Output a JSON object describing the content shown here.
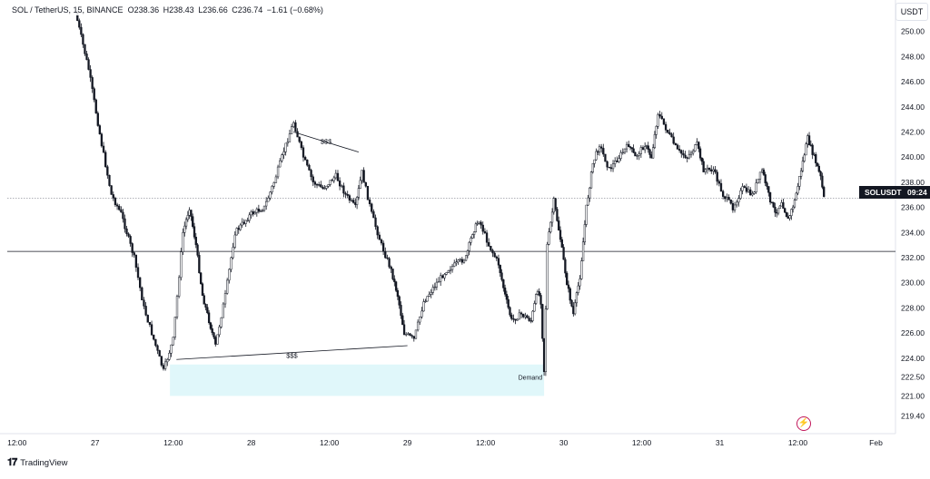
{
  "legend": {
    "symbol": "SOL / TetherUS, 15, BINANCE",
    "open_label": "O",
    "open": "238.36",
    "high_label": "H",
    "high": "238.43",
    "low_label": "L",
    "low": "236.66",
    "close_label": "C",
    "close": "236.74",
    "change": "−1.61 (−0.68%)"
  },
  "currency": "USDT",
  "price_tag": {
    "symbol": "SOLUSDT",
    "countdown": "09:24"
  },
  "brand": "TradingView",
  "colors": {
    "candle": "#131722",
    "demand_zone": "#e0f7fa",
    "grid": "#e6e8ec",
    "tag_bg": "#131722",
    "flash": "#c2185b"
  },
  "icons": [
    "tradingview-logo-icon",
    "flash-icon"
  ],
  "chart_data": {
    "type": "candlestick",
    "y_axis": {
      "range": [
        218.0,
        252.5
      ],
      "ticks": [
        250.0,
        248.0,
        246.0,
        244.0,
        242.0,
        240.0,
        238.0,
        236.0,
        234.0,
        232.0,
        230.0,
        228.0,
        226.0,
        224.0,
        222.5,
        221.0,
        219.4
      ],
      "tick_labels": [
        "250.00",
        "248.00",
        "246.00",
        "244.00",
        "242.00",
        "240.00",
        "238.00",
        "236.00",
        "234.00",
        "232.00",
        "230.00",
        "228.00",
        "226.00",
        "224.00",
        "222.50",
        "221.00",
        "219.40"
      ]
    },
    "x_axis": {
      "range": [
        "2025-01-26 10:30",
        "2025-02-01 03:00"
      ],
      "tick_labels": [
        {
          "t": "2025-01-26 12:00",
          "label": "12:00"
        },
        {
          "t": "2025-01-27 00:00",
          "label": "27"
        },
        {
          "t": "2025-01-27 12:00",
          "label": "12:00"
        },
        {
          "t": "2025-01-28 00:00",
          "label": "28"
        },
        {
          "t": "2025-01-28 12:00",
          "label": "12:00"
        },
        {
          "t": "2025-01-29 00:00",
          "label": "29"
        },
        {
          "t": "2025-01-29 12:00",
          "label": "12:00"
        },
        {
          "t": "2025-01-30 00:00",
          "label": "30"
        },
        {
          "t": "2025-01-30 12:00",
          "label": "12:00"
        },
        {
          "t": "2025-01-31 00:00",
          "label": "31"
        },
        {
          "t": "2025-01-31 12:00",
          "label": "12:00"
        },
        {
          "t": "2025-02-01 00:00",
          "label": "Feb"
        }
      ]
    },
    "price_path": [
      {
        "t": "2025-01-26 21:00",
        "p": 251.5
      },
      {
        "t": "2025-01-26 23:00",
        "p": 247.0
      },
      {
        "t": "2025-01-27 01:00",
        "p": 241.0
      },
      {
        "t": "2025-01-27 02:30",
        "p": 237.0
      },
      {
        "t": "2025-01-27 04:00",
        "p": 235.5
      },
      {
        "t": "2025-01-27 06:00",
        "p": 232.0
      },
      {
        "t": "2025-01-27 07:30",
        "p": 228.0
      },
      {
        "t": "2025-01-27 09:00",
        "p": 225.5
      },
      {
        "t": "2025-01-27 10:30",
        "p": 223.0
      },
      {
        "t": "2025-01-27 12:00",
        "p": 225.5
      },
      {
        "t": "2025-01-27 13:30",
        "p": 234.0
      },
      {
        "t": "2025-01-27 14:30",
        "p": 236.0
      },
      {
        "t": "2025-01-27 15:30",
        "p": 233.0
      },
      {
        "t": "2025-01-27 16:30",
        "p": 229.0
      },
      {
        "t": "2025-01-27 17:30",
        "p": 227.0
      },
      {
        "t": "2025-01-27 18:30",
        "p": 225.0
      },
      {
        "t": "2025-01-27 20:00",
        "p": 229.0
      },
      {
        "t": "2025-01-27 21:30",
        "p": 234.0
      },
      {
        "t": "2025-01-28 00:00",
        "p": 235.5
      },
      {
        "t": "2025-01-28 02:00",
        "p": 236.0
      },
      {
        "t": "2025-01-28 03:30",
        "p": 238.0
      },
      {
        "t": "2025-01-28 05:00",
        "p": 240.5
      },
      {
        "t": "2025-01-28 06:30",
        "p": 242.8
      },
      {
        "t": "2025-01-28 08:00",
        "p": 240.0
      },
      {
        "t": "2025-01-28 09:30",
        "p": 238.0
      },
      {
        "t": "2025-01-28 11:00",
        "p": 237.5
      },
      {
        "t": "2025-01-28 13:00",
        "p": 238.5
      },
      {
        "t": "2025-01-28 14:30",
        "p": 237.0
      },
      {
        "t": "2025-01-28 16:00",
        "p": 236.0
      },
      {
        "t": "2025-01-28 17:00",
        "p": 238.8
      },
      {
        "t": "2025-01-28 18:30",
        "p": 235.5
      },
      {
        "t": "2025-01-28 20:00",
        "p": 233.0
      },
      {
        "t": "2025-01-28 21:30",
        "p": 231.0
      },
      {
        "t": "2025-01-28 22:30",
        "p": 229.0
      },
      {
        "t": "2025-01-28 23:30",
        "p": 226.0
      },
      {
        "t": "2025-01-29 01:00",
        "p": 225.5
      },
      {
        "t": "2025-01-29 02:30",
        "p": 228.5
      },
      {
        "t": "2025-01-29 04:30",
        "p": 230.0
      },
      {
        "t": "2025-01-29 06:00",
        "p": 231.0
      },
      {
        "t": "2025-01-29 07:30",
        "p": 231.5
      },
      {
        "t": "2025-01-29 09:00",
        "p": 232.0
      },
      {
        "t": "2025-01-29 10:00",
        "p": 234.0
      },
      {
        "t": "2025-01-29 11:00",
        "p": 235.0
      },
      {
        "t": "2025-01-29 12:30",
        "p": 233.0
      },
      {
        "t": "2025-01-29 14:00",
        "p": 231.5
      },
      {
        "t": "2025-01-29 15:00",
        "p": 229.0
      },
      {
        "t": "2025-01-29 16:00",
        "p": 227.0
      },
      {
        "t": "2025-01-29 17:30",
        "p": 227.5
      },
      {
        "t": "2025-01-29 19:00",
        "p": 227.0
      },
      {
        "t": "2025-01-29 20:00",
        "p": 229.5
      },
      {
        "t": "2025-01-29 20:30",
        "p": 228.5
      },
      {
        "t": "2025-01-29 21:00",
        "p": 223.0
      },
      {
        "t": "2025-01-29 21:30",
        "p": 233.0
      },
      {
        "t": "2025-01-29 22:30",
        "p": 236.5
      },
      {
        "t": "2025-01-29 23:30",
        "p": 233.5
      },
      {
        "t": "2025-01-30 00:30",
        "p": 230.0
      },
      {
        "t": "2025-01-30 01:30",
        "p": 227.5
      },
      {
        "t": "2025-01-30 02:30",
        "p": 230.5
      },
      {
        "t": "2025-01-30 03:30",
        "p": 236.0
      },
      {
        "t": "2025-01-30 04:30",
        "p": 239.5
      },
      {
        "t": "2025-01-30 05:30",
        "p": 241.0
      },
      {
        "t": "2025-01-30 07:00",
        "p": 239.0
      },
      {
        "t": "2025-01-30 08:30",
        "p": 240.0
      },
      {
        "t": "2025-01-30 10:00",
        "p": 241.0
      },
      {
        "t": "2025-01-30 11:00",
        "p": 240.0
      },
      {
        "t": "2025-01-30 12:30",
        "p": 241.0
      },
      {
        "t": "2025-01-30 13:30",
        "p": 240.0
      },
      {
        "t": "2025-01-30 14:30",
        "p": 243.5
      },
      {
        "t": "2025-01-30 16:00",
        "p": 242.0
      },
      {
        "t": "2025-01-30 17:30",
        "p": 240.5
      },
      {
        "t": "2025-01-30 19:00",
        "p": 240.0
      },
      {
        "t": "2025-01-30 20:30",
        "p": 241.0
      },
      {
        "t": "2025-01-30 21:30",
        "p": 239.0
      },
      {
        "t": "2025-01-30 23:00",
        "p": 239.0
      },
      {
        "t": "2025-01-31 00:30",
        "p": 237.0
      },
      {
        "t": "2025-01-31 02:00",
        "p": 236.0
      },
      {
        "t": "2025-01-31 03:30",
        "p": 237.5
      },
      {
        "t": "2025-01-31 05:00",
        "p": 237.0
      },
      {
        "t": "2025-01-31 06:30",
        "p": 239.0
      },
      {
        "t": "2025-01-31 07:30",
        "p": 237.0
      },
      {
        "t": "2025-01-31 08:30",
        "p": 235.5
      },
      {
        "t": "2025-01-31 09:30",
        "p": 236.5
      },
      {
        "t": "2025-01-31 10:30",
        "p": 235.0
      },
      {
        "t": "2025-01-31 11:30",
        "p": 236.5
      },
      {
        "t": "2025-01-31 12:30",
        "p": 239.0
      },
      {
        "t": "2025-01-31 13:30",
        "p": 241.5
      },
      {
        "t": "2025-01-31 14:30",
        "p": 240.0
      },
      {
        "t": "2025-01-31 15:30",
        "p": 238.4
      },
      {
        "t": "2025-01-31 16:00",
        "p": 236.74
      }
    ],
    "horizontal_lines": [
      {
        "price": 236.74,
        "style": "dotted"
      },
      {
        "price": 232.5,
        "style": "solid"
      }
    ],
    "annotations": [
      {
        "text": "$$$",
        "from": {
          "t": "2025-01-28 06:30",
          "p": 242.0
        },
        "to": {
          "t": "2025-01-28 16:30",
          "p": 240.4
        }
      },
      {
        "text": "$$$",
        "from": {
          "t": "2025-01-27 12:30",
          "p": 223.9
        },
        "to": {
          "t": "2025-01-29 00:00",
          "p": 225.0
        }
      }
    ],
    "zones": [
      {
        "label": "Demand",
        "t_start": "2025-01-27 11:30",
        "t_end": "2025-01-29 21:00",
        "p_top": 223.5,
        "p_bottom": 221.0
      }
    ]
  }
}
